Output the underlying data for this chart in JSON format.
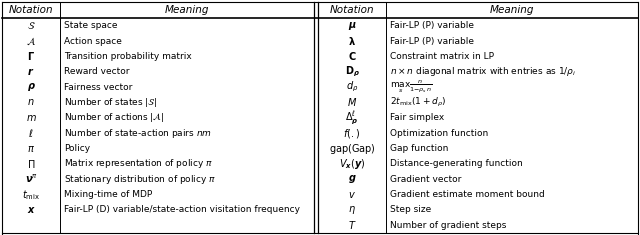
{
  "left_notations": [
    "΢",
    "Â",
    "Γ",
    "r",
    "ρ",
    "n",
    "m",
    "ℓ",
    "π",
    "Π",
    "νⁿ",
    "t_mix",
    "x"
  ],
  "left_meanings": [
    "State space",
    "Action space",
    "Transition probability matrix",
    "Reward vector",
    "Fairness vector",
    "Number of states |S|",
    "Number of actions |A|",
    "Number of state-action pairs nm",
    "Policy",
    "Matrix representation of policy π",
    "Stationary distribution of policy π",
    "Mixing-time of MDP",
    "Fair-LP (D) variable/state-action visitation frequency"
  ],
  "right_notations": [
    "μ",
    "λ",
    "C",
    "D_ρ",
    "d_ρ",
    "M",
    "Δ^ℓ_ρ",
    "f(.)",
    "gap(Gap)",
    "V_x(y)",
    "g",
    "v",
    "η",
    "T"
  ],
  "right_meanings": [
    "Fair-LP (P) variable",
    "Fair-LP (P) variable",
    "Constraint matrix in LP",
    "n × n diagonal matrix with entries as 1/ρ_i",
    "max_s  n/(1−ρ_s n)",
    "2t_mix(1 + d_ρ)",
    "Fair simplex",
    "Optimization function",
    "Gap function",
    "Distance-generating function",
    "Gradient vector",
    "Gradient estimate moment bound",
    "Step size",
    "Number of gradient steps"
  ]
}
